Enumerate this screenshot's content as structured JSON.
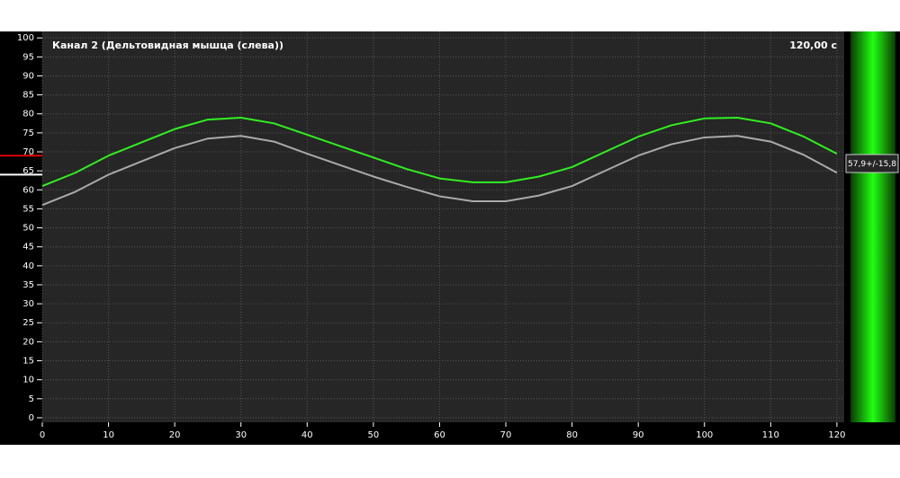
{
  "chart_data": {
    "type": "line",
    "title": "Канал 2 (Дельтовидная мышца (слева))",
    "time_label": "120,00 с",
    "readout": "57,9+/-15,8",
    "x": [
      0,
      5,
      10,
      15,
      20,
      25,
      30,
      35,
      40,
      45,
      50,
      55,
      60,
      65,
      70,
      75,
      80,
      85,
      90,
      95,
      100,
      105,
      110,
      115,
      120
    ],
    "series": [
      {
        "color": "#33ee22",
        "values": [
          61,
          64.5,
          69,
          72.5,
          76,
          78.5,
          79,
          77.5,
          74.5,
          71.5,
          68.5,
          65.5,
          63,
          62,
          62,
          63.5,
          66,
          70,
          74,
          77,
          78.8,
          79,
          77.5,
          74,
          69.5
        ]
      },
      {
        "color": "#aaaaaa",
        "values": [
          56,
          59.5,
          64,
          67.5,
          71,
          73.5,
          74.2,
          72.7,
          69.5,
          66.5,
          63.5,
          60.8,
          58.3,
          57,
          57,
          58.5,
          61,
          65,
          69,
          72,
          73.8,
          74.2,
          72.7,
          69.2,
          64.5
        ]
      }
    ],
    "reference_lines": [
      {
        "value": 69,
        "color": "#e00000"
      },
      {
        "value": 64,
        "color": "#ffffff"
      }
    ],
    "xlim": [
      0,
      121.1
    ],
    "ylim": [
      -1.2,
      101.7
    ],
    "xticks": [
      0,
      10,
      20,
      30,
      40,
      50,
      60,
      70,
      80,
      90,
      100,
      110,
      120
    ],
    "yticks": [
      0,
      5,
      10,
      15,
      20,
      25,
      30,
      35,
      40,
      45,
      50,
      55,
      60,
      65,
      70,
      75,
      80,
      85,
      90,
      95,
      100
    ],
    "grid": true
  }
}
